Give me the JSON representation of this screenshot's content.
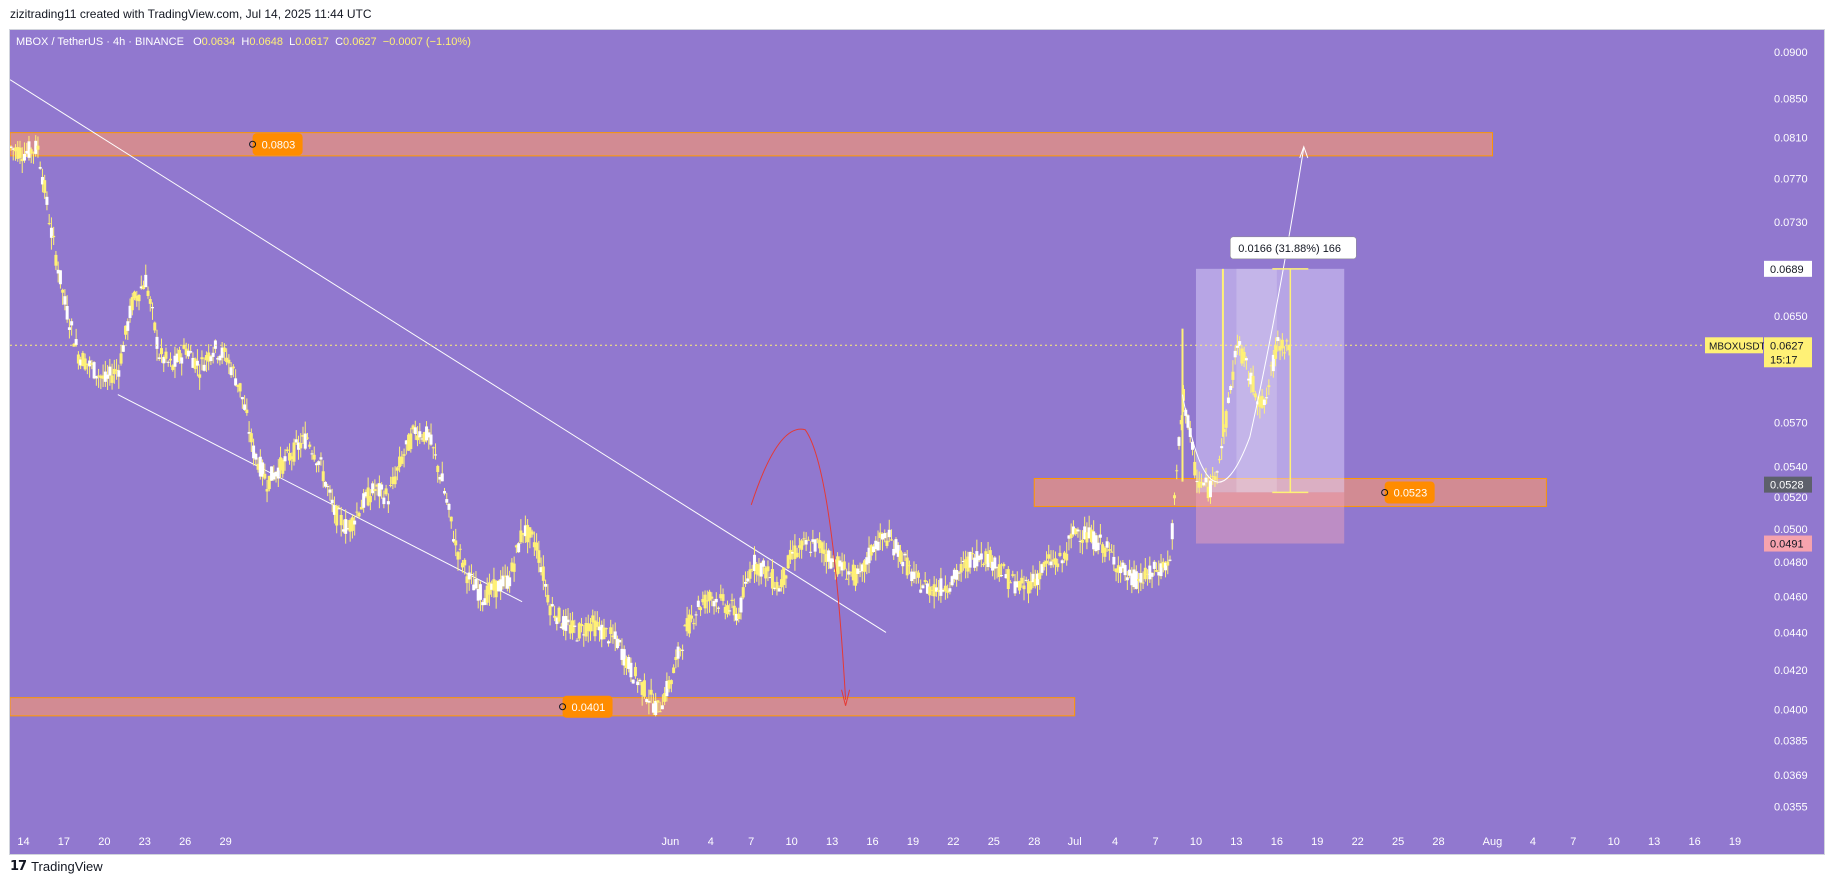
{
  "header": {
    "attribution": "zizitrading11 created with TradingView.com, Jul 14, 2025 11:44 UTC"
  },
  "footer": {
    "brand": "TradingView"
  },
  "legend": {
    "symbol": "MBOX / TetherUS · 4h · BINANCE",
    "open_label": "O",
    "open": "0.0634",
    "high_label": "H",
    "high": "0.0648",
    "low_label": "L",
    "low": "0.0617",
    "close_label": "C",
    "close": "0.0627",
    "change": "−0.0007 (−1.10%)"
  },
  "colors": {
    "background": "#9178cf",
    "candle": "#fff176",
    "zone": "#e8917f",
    "zone_label": "#ff8c00",
    "measure": "#fff176",
    "arrow": "#e53935"
  },
  "chart_data": {
    "type": "candlestick",
    "symbol": "MBOXUSDT",
    "exchange": "BINANCE",
    "timeframe": "4h",
    "y_scale": "log",
    "ylim": [
      0.0347,
      0.0925
    ],
    "x_ticks": [
      "14",
      "17",
      "20",
      "23",
      "26",
      "29",
      "Jun",
      "4",
      "7",
      "10",
      "13",
      "16",
      "19",
      "22",
      "25",
      "28",
      "Jul",
      "4",
      "7",
      "10",
      "13",
      "16",
      "19",
      "22",
      "25",
      "28",
      "Aug",
      "4",
      "7",
      "10",
      "13",
      "16",
      "19"
    ],
    "x_range_days": [
      "2025-04-13",
      "2025-08-21"
    ],
    "y_ticks": [
      "0.0900",
      "0.0850",
      "0.0810",
      "0.0770",
      "0.0730",
      "0.0650",
      "0.0570",
      "0.0540",
      "0.0520",
      "0.0500",
      "0.0480",
      "0.0460",
      "0.0440",
      "0.0420",
      "0.0400",
      "0.0385",
      "0.0369",
      "0.0355"
    ],
    "price_path": [
      [
        "2025-04-13",
        0.08
      ],
      [
        "2025-04-14",
        0.0795
      ],
      [
        "2025-04-15",
        0.08
      ],
      [
        "2025-04-16",
        0.072
      ],
      [
        "2025-04-17",
        0.066
      ],
      [
        "2025-04-18",
        0.062
      ],
      [
        "2025-04-19",
        0.061
      ],
      [
        "2025-04-20",
        0.06
      ],
      [
        "2025-04-21",
        0.061
      ],
      [
        "2025-04-22",
        0.066
      ],
      [
        "2025-04-23",
        0.068
      ],
      [
        "2025-04-24",
        0.062
      ],
      [
        "2025-04-25",
        0.061
      ],
      [
        "2025-04-26",
        0.0625
      ],
      [
        "2025-04-27",
        0.061
      ],
      [
        "2025-04-28",
        0.0625
      ],
      [
        "2025-04-29",
        0.0618
      ],
      [
        "2025-04-30",
        0.0595
      ],
      [
        "2025-05-01",
        0.055
      ],
      [
        "2025-05-02",
        0.053
      ],
      [
        "2025-05-03",
        0.054
      ],
      [
        "2025-05-04",
        0.055
      ],
      [
        "2025-05-05",
        0.056
      ],
      [
        "2025-05-06",
        0.054
      ],
      [
        "2025-05-07",
        0.051
      ],
      [
        "2025-05-08",
        0.05
      ],
      [
        "2025-05-09",
        0.0515
      ],
      [
        "2025-05-10",
        0.0525
      ],
      [
        "2025-05-11",
        0.052
      ],
      [
        "2025-05-12",
        0.0545
      ],
      [
        "2025-05-13",
        0.0565
      ],
      [
        "2025-05-14",
        0.056
      ],
      [
        "2025-05-15",
        0.053
      ],
      [
        "2025-05-16",
        0.049
      ],
      [
        "2025-05-17",
        0.047
      ],
      [
        "2025-05-18",
        0.046
      ],
      [
        "2025-05-19",
        0.0465
      ],
      [
        "2025-05-20",
        0.047
      ],
      [
        "2025-05-21",
        0.05
      ],
      [
        "2025-05-22",
        0.049
      ],
      [
        "2025-05-23",
        0.0455
      ],
      [
        "2025-05-24",
        0.0445
      ],
      [
        "2025-05-25",
        0.044
      ],
      [
        "2025-05-26",
        0.0445
      ],
      [
        "2025-05-27",
        0.044
      ],
      [
        "2025-05-28",
        0.0435
      ],
      [
        "2025-05-29",
        0.042
      ],
      [
        "2025-05-30",
        0.041
      ],
      [
        "2025-05-31",
        0.04
      ],
      [
        "2025-06-01",
        0.0415
      ],
      [
        "2025-06-02",
        0.044
      ],
      [
        "2025-06-03",
        0.0455
      ],
      [
        "2025-06-04",
        0.046
      ],
      [
        "2025-06-05",
        0.0455
      ],
      [
        "2025-06-06",
        0.045
      ],
      [
        "2025-06-07",
        0.048
      ],
      [
        "2025-06-08",
        0.0475
      ],
      [
        "2025-06-09",
        0.0465
      ],
      [
        "2025-06-10",
        0.0485
      ],
      [
        "2025-06-11",
        0.049
      ],
      [
        "2025-06-12",
        0.049
      ],
      [
        "2025-06-13",
        0.048
      ],
      [
        "2025-06-14",
        0.0475
      ],
      [
        "2025-06-15",
        0.047
      ],
      [
        "2025-06-16",
        0.049
      ],
      [
        "2025-06-17",
        0.0495
      ],
      [
        "2025-06-18",
        0.0485
      ],
      [
        "2025-06-19",
        0.047
      ],
      [
        "2025-06-20",
        0.0465
      ],
      [
        "2025-06-21",
        0.0465
      ],
      [
        "2025-06-22",
        0.047
      ],
      [
        "2025-06-23",
        0.048
      ],
      [
        "2025-06-24",
        0.0485
      ],
      [
        "2025-06-25",
        0.048
      ],
      [
        "2025-06-26",
        0.047
      ],
      [
        "2025-06-27",
        0.0465
      ],
      [
        "2025-06-28",
        0.047
      ],
      [
        "2025-06-29",
        0.048
      ],
      [
        "2025-06-30",
        0.048
      ],
      [
        "2025-07-01",
        0.05
      ],
      [
        "2025-07-02",
        0.0495
      ],
      [
        "2025-07-03",
        0.049
      ],
      [
        "2025-07-04",
        0.048
      ],
      [
        "2025-07-05",
        0.047
      ],
      [
        "2025-07-06",
        0.047
      ],
      [
        "2025-07-07",
        0.0475
      ],
      [
        "2025-07-08",
        0.048
      ],
      [
        "2025-07-09",
        0.059
      ],
      [
        "2025-07-10",
        0.053
      ],
      [
        "2025-07-11",
        0.0525
      ],
      [
        "2025-07-12",
        0.056
      ],
      [
        "2025-07-13",
        0.063
      ],
      [
        "2025-07-14",
        0.06
      ],
      [
        "2025-07-15",
        0.058
      ],
      [
        "2025-07-16",
        0.063
      ],
      [
        "2025-07-17",
        0.0627
      ]
    ],
    "zones": [
      {
        "label": "0.0803",
        "low": 0.0792,
        "high": 0.0815,
        "start": "2025-04-13",
        "end": "2025-08-01"
      },
      {
        "label": "0.0523",
        "low": 0.0514,
        "high": 0.0532,
        "start": "2025-06-28",
        "end": "2025-08-05"
      },
      {
        "label": "0.0401",
        "low": 0.0397,
        "high": 0.0406,
        "start": "2025-04-13",
        "end": "2025-07-01"
      }
    ],
    "measure": {
      "text": "0.0166 (31.88%) 166",
      "from": 0.0523,
      "to": 0.0689
    },
    "axis_labels": [
      {
        "text": "0.0689",
        "price": 0.0689,
        "style": "white"
      },
      {
        "text": "0.0528",
        "price": 0.0528,
        "style": "gray"
      },
      {
        "text": "0.0491",
        "price": 0.0491,
        "style": "pink"
      }
    ],
    "current": {
      "symbol": "MBOXUSDT",
      "price": 0.0627,
      "text": "0.0627",
      "countdown": "15:17"
    }
  }
}
